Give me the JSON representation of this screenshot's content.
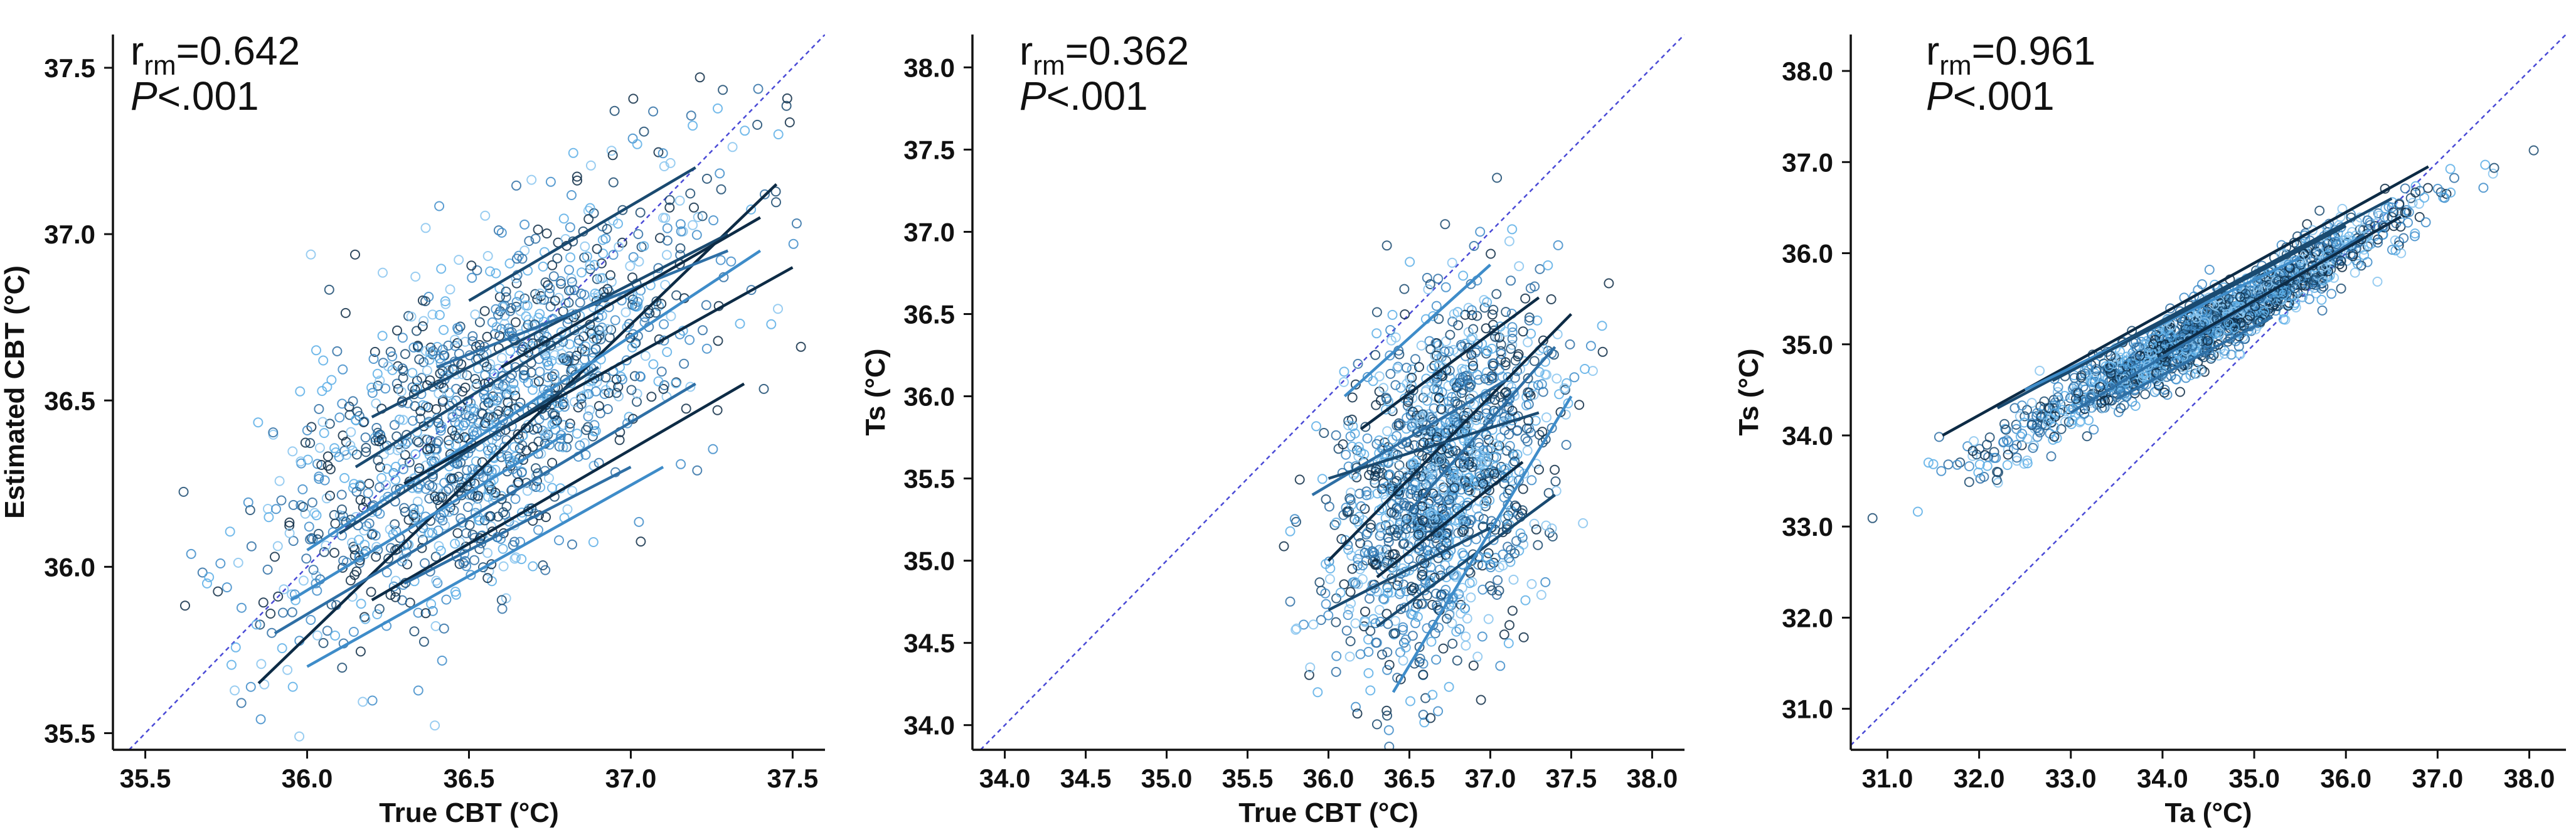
{
  "chart_data": [
    {
      "type": "scatter",
      "xlabel": "True CBT (°C)",
      "ylabel": "Estimated CBT (°C)",
      "xlim": [
        35.4,
        37.6
      ],
      "ylim": [
        35.45,
        37.6
      ],
      "xticks": [
        "35.5",
        "36.0",
        "36.5",
        "37.0",
        "37.5"
      ],
      "yticks": [
        "35.5",
        "36.0",
        "36.5",
        "37.0",
        "37.5"
      ],
      "stat_r_symbol": "r",
      "stat_r_sub": "rm",
      "stat_r_value": "=0.642",
      "stat_p_symbol": "P",
      "stat_p_value": "<.001",
      "identity_line": true,
      "cloud": {
        "cx": 36.55,
        "cy": 36.45,
        "sx": 0.33,
        "sy": 0.33,
        "rho": 0.64,
        "n": 1400
      },
      "lines": [
        [
          [
            35.85,
            35.65
          ],
          [
            37.45,
            37.15
          ]
        ],
        [
          [
            36.2,
            36.45
          ],
          [
            37.3,
            37.0
          ]
        ],
        [
          [
            35.9,
            35.8
          ],
          [
            37.2,
            36.55
          ]
        ],
        [
          [
            36.0,
            36.05
          ],
          [
            37.4,
            36.95
          ]
        ],
        [
          [
            36.3,
            36.25
          ],
          [
            37.5,
            36.9
          ]
        ],
        [
          [
            36.1,
            36.1
          ],
          [
            36.9,
            36.6
          ]
        ],
        [
          [
            36.4,
            36.6
          ],
          [
            37.3,
            36.95
          ]
        ],
        [
          [
            36.0,
            35.7
          ],
          [
            37.1,
            36.3
          ]
        ],
        [
          [
            36.2,
            35.9
          ],
          [
            37.35,
            36.55
          ]
        ],
        [
          [
            36.5,
            36.8
          ],
          [
            37.2,
            37.2
          ]
        ],
        [
          [
            36.3,
            35.95
          ],
          [
            37.0,
            36.3
          ]
        ],
        [
          [
            35.95,
            35.9
          ],
          [
            36.8,
            36.4
          ]
        ],
        [
          [
            36.6,
            36.6
          ],
          [
            37.4,
            37.05
          ]
        ],
        [
          [
            36.15,
            36.3
          ],
          [
            36.9,
            36.75
          ]
        ]
      ]
    },
    {
      "type": "scatter",
      "xlabel": "True CBT (°C)",
      "ylabel": "Ts (°C)",
      "xlim": [
        33.8,
        38.2
      ],
      "ylim": [
        33.85,
        38.2
      ],
      "xticks": [
        "34.0",
        "34.5",
        "35.0",
        "35.5",
        "36.0",
        "36.5",
        "37.0",
        "37.5",
        "38.0"
      ],
      "yticks": [
        "34.0",
        "34.5",
        "35.0",
        "35.5",
        "36.0",
        "36.5",
        "37.0",
        "37.5",
        "38.0"
      ],
      "stat_r_symbol": "r",
      "stat_r_sub": "rm",
      "stat_r_value": "=0.362",
      "stat_p_symbol": "P",
      "stat_p_value": "<.001",
      "identity_line": true,
      "cloud": {
        "cx": 36.7,
        "cy": 35.5,
        "sx": 0.33,
        "sy": 0.55,
        "rho": 0.36,
        "n": 1400
      },
      "lines": [
        [
          [
            36.0,
            35.0
          ],
          [
            37.5,
            36.5
          ]
        ],
        [
          [
            36.3,
            34.6
          ],
          [
            37.4,
            35.4
          ]
        ],
        [
          [
            35.9,
            35.4
          ],
          [
            37.1,
            36.1
          ]
        ],
        [
          [
            36.4,
            34.2
          ],
          [
            37.5,
            36.0
          ]
        ],
        [
          [
            36.2,
            35.8
          ],
          [
            37.3,
            36.6
          ]
        ],
        [
          [
            36.0,
            34.7
          ],
          [
            37.0,
            35.2
          ]
        ],
        [
          [
            36.5,
            35.3
          ],
          [
            37.4,
            36.3
          ]
        ],
        [
          [
            36.1,
            36.0
          ],
          [
            37.0,
            36.8
          ]
        ],
        [
          [
            36.3,
            34.9
          ],
          [
            37.2,
            35.6
          ]
        ],
        [
          [
            36.0,
            35.5
          ],
          [
            37.3,
            35.9
          ]
        ]
      ]
    },
    {
      "type": "scatter",
      "xlabel": "Ta (°C)",
      "ylabel": "Ts (°C)",
      "xlim": [
        30.6,
        38.4
      ],
      "ylim": [
        30.55,
        38.4
      ],
      "xticks": [
        "31.0",
        "32.0",
        "33.0",
        "34.0",
        "35.0",
        "36.0",
        "37.0",
        "38.0"
      ],
      "yticks": [
        "31.0",
        "32.0",
        "33.0",
        "34.0",
        "35.0",
        "36.0",
        "37.0",
        "38.0"
      ],
      "stat_r_symbol": "r",
      "stat_r_sub": "rm",
      "stat_r_value": "=0.961",
      "stat_p_symbol": "P",
      "stat_p_value": "<.001",
      "identity_line": true,
      "cloud": {
        "cx": 34.5,
        "cy": 35.2,
        "sx": 1.1,
        "sy": 0.65,
        "rho": 0.96,
        "n": 1500
      },
      "lines": [
        [
          [
            31.6,
            34.0
          ],
          [
            36.9,
            36.95
          ]
        ],
        [
          [
            32.2,
            34.3
          ],
          [
            36.5,
            36.6
          ]
        ],
        [
          [
            33.0,
            34.25
          ],
          [
            36.2,
            36.2
          ]
        ],
        [
          [
            32.5,
            34.5
          ],
          [
            35.5,
            35.95
          ]
        ],
        [
          [
            34.0,
            34.9
          ],
          [
            36.6,
            36.4
          ]
        ],
        [
          [
            32.8,
            34.6
          ],
          [
            36.0,
            36.3
          ]
        ],
        [
          [
            33.5,
            34.4
          ],
          [
            35.2,
            35.3
          ]
        ]
      ]
    }
  ]
}
